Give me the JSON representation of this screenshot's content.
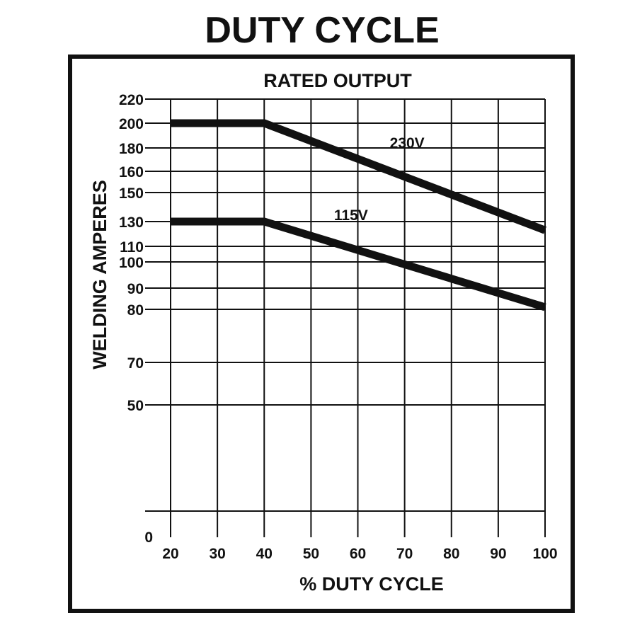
{
  "chart_data": {
    "type": "line",
    "title": "DUTY CYCLE",
    "subtitle": "RATED OUTPUT",
    "xlabel": "% DUTY CYCLE",
    "ylabel": "WELDING AMPERES",
    "xlim": [
      20,
      100
    ],
    "x_ticks": [
      "20",
      "30",
      "40",
      "50",
      "60",
      "70",
      "80",
      "90",
      "100"
    ],
    "y_ticks": [
      "220",
      "200",
      "180",
      "160",
      "150",
      "130",
      "110",
      "100",
      "90",
      "80",
      "70",
      "50",
      "0"
    ],
    "grid": true,
    "series": [
      {
        "name": "230V",
        "x": [
          20,
          40,
          100
        ],
        "y": [
          200,
          200,
          123
        ]
      },
      {
        "name": "115V",
        "x": [
          20,
          40,
          100
        ],
        "y": [
          130,
          130,
          81
        ]
      }
    ],
    "colors": {
      "line": "#111111",
      "grid": "#111111",
      "frame": "#111111"
    }
  }
}
